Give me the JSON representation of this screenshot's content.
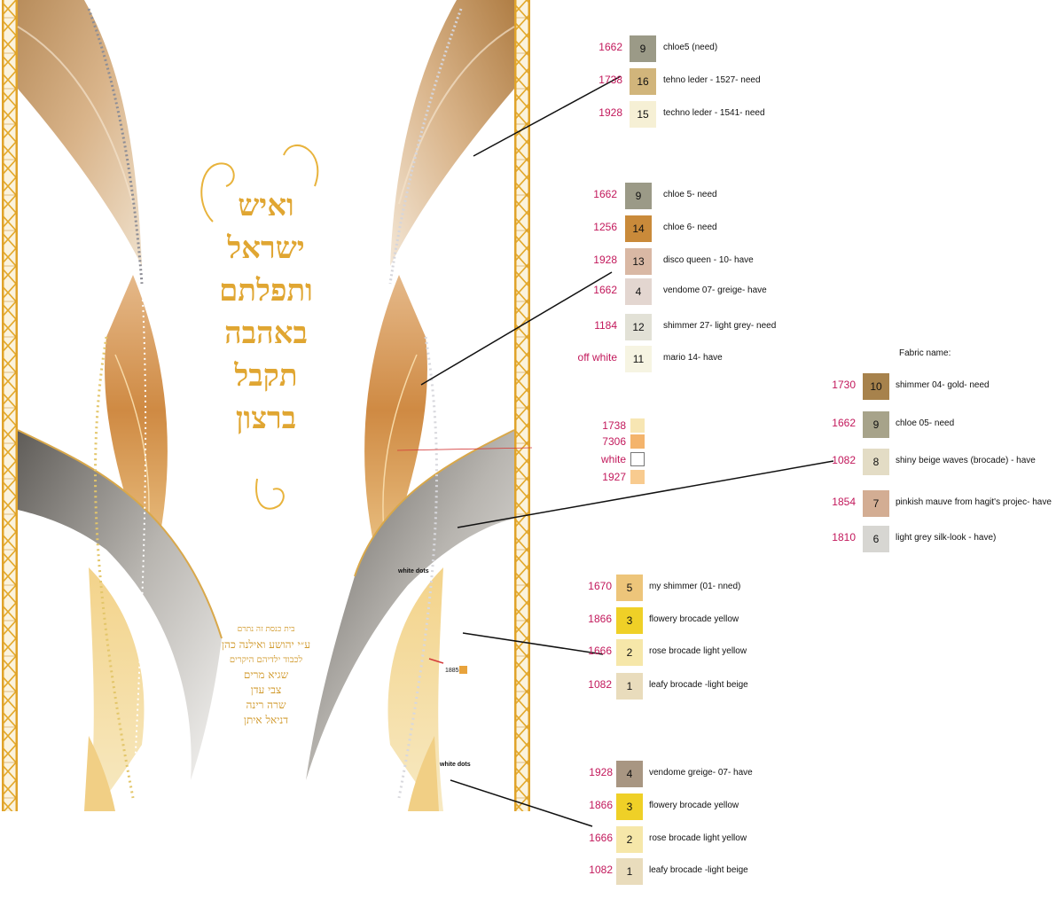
{
  "artwork": {
    "hebrew_title": [
      "ואיש",
      "ישראל",
      "ותפלתם",
      "באהבה",
      "תקבל",
      "ברצון"
    ],
    "dedication": [
      "בית כנסת זה נתרם",
      "ע״י יהושע ואילנה כהן",
      "לכבוד ילדיהם היקרים",
      "שגיא מרים",
      "צבי עדן",
      "שרה רינה",
      "דניאל איתן"
    ],
    "white_dots_label_1": "white dots",
    "white_dots_label_2": "white dots",
    "small_code": "1885",
    "small_color": "#e8a33c"
  },
  "fabric_header": "Fabric name:",
  "groups": {
    "top": [
      {
        "code": "1662",
        "num": "9",
        "name": "chloe5 (need)",
        "color": "#9b9a87"
      },
      {
        "code": "1738",
        "num": "16",
        "name": "tehno leder - 1527- need",
        "color": "#d1b57b"
      },
      {
        "code": "1928",
        "num": "15",
        "name": "techno leder - 1541- need",
        "color": "#f6f0d5"
      }
    ],
    "mid": [
      {
        "code": "1662",
        "num": "9",
        "name": "chloe 5- need",
        "color": "#9b9a87"
      },
      {
        "code": "1256",
        "num": "14",
        "name": "chloe 6- need",
        "color": "#c98a3a"
      },
      {
        "code": "1928",
        "num": "13",
        "name": "disco queen - 10- have",
        "color": "#d9b8a4"
      },
      {
        "code": "1662",
        "num": "4",
        "name": "vendome 07- greige- have",
        "color": "#e3d6d0"
      },
      {
        "code": "1184",
        "num": "12",
        "name": "shimmer 27- light grey- need",
        "color": "#e2e1d6"
      },
      {
        "code": "off white",
        "num": "11",
        "name": "mario 14- have",
        "color": "#f6f4e2"
      }
    ],
    "mini": [
      {
        "code": "1738",
        "color": "#f7e6b3"
      },
      {
        "code": "7306",
        "color": "#f4b46c"
      },
      {
        "code": "white",
        "color": "#ffffff"
      },
      {
        "code": "1927",
        "color": "#f8cb8f"
      }
    ],
    "right": [
      {
        "code": "1730",
        "num": "10",
        "name": "shimmer 04- gold- need",
        "color": "#a7824c"
      },
      {
        "code": "1662",
        "num": "9",
        "name": "chloe 05- need",
        "color": "#a7a38a"
      },
      {
        "code": "1082",
        "num": "8",
        "name": "shiny beige waves (brocade) - have",
        "color": "#e3dcc5"
      },
      {
        "code": "1854",
        "num": "7",
        "name": "pinkish mauve from hagit's projec- have",
        "color": "#d3ad93"
      },
      {
        "code": "1810",
        "num": "6",
        "name": "light grey silk-look - have)",
        "color": "#d7d6d2"
      }
    ],
    "lower": [
      {
        "code": "1670",
        "num": "5",
        "name": "my shimmer (01- nned)",
        "color": "#edc57a"
      },
      {
        "code": "1866",
        "num": "3",
        "name": "flowery brocade yellow",
        "color": "#efd027"
      },
      {
        "code": "1666",
        "num": "2",
        "name": "rose brocade light yellow",
        "color": "#f6e7a9"
      },
      {
        "code": "1082",
        "num": "1",
        "name": "leafy brocade -light beige",
        "color": "#e9dcbc"
      }
    ],
    "bottom": [
      {
        "code": "1928",
        "num": "4",
        "name": "vendome greige- 07- have",
        "color": "#a89682"
      },
      {
        "code": "1866",
        "num": "3",
        "name": "flowery brocade yellow",
        "color": "#efd027"
      },
      {
        "code": "1666",
        "num": "2",
        "name": "rose brocade light yellow",
        "color": "#f6e7a9"
      },
      {
        "code": "1082",
        "num": "1",
        "name": "leafy brocade -light beige",
        "color": "#e9dcbc"
      }
    ]
  }
}
